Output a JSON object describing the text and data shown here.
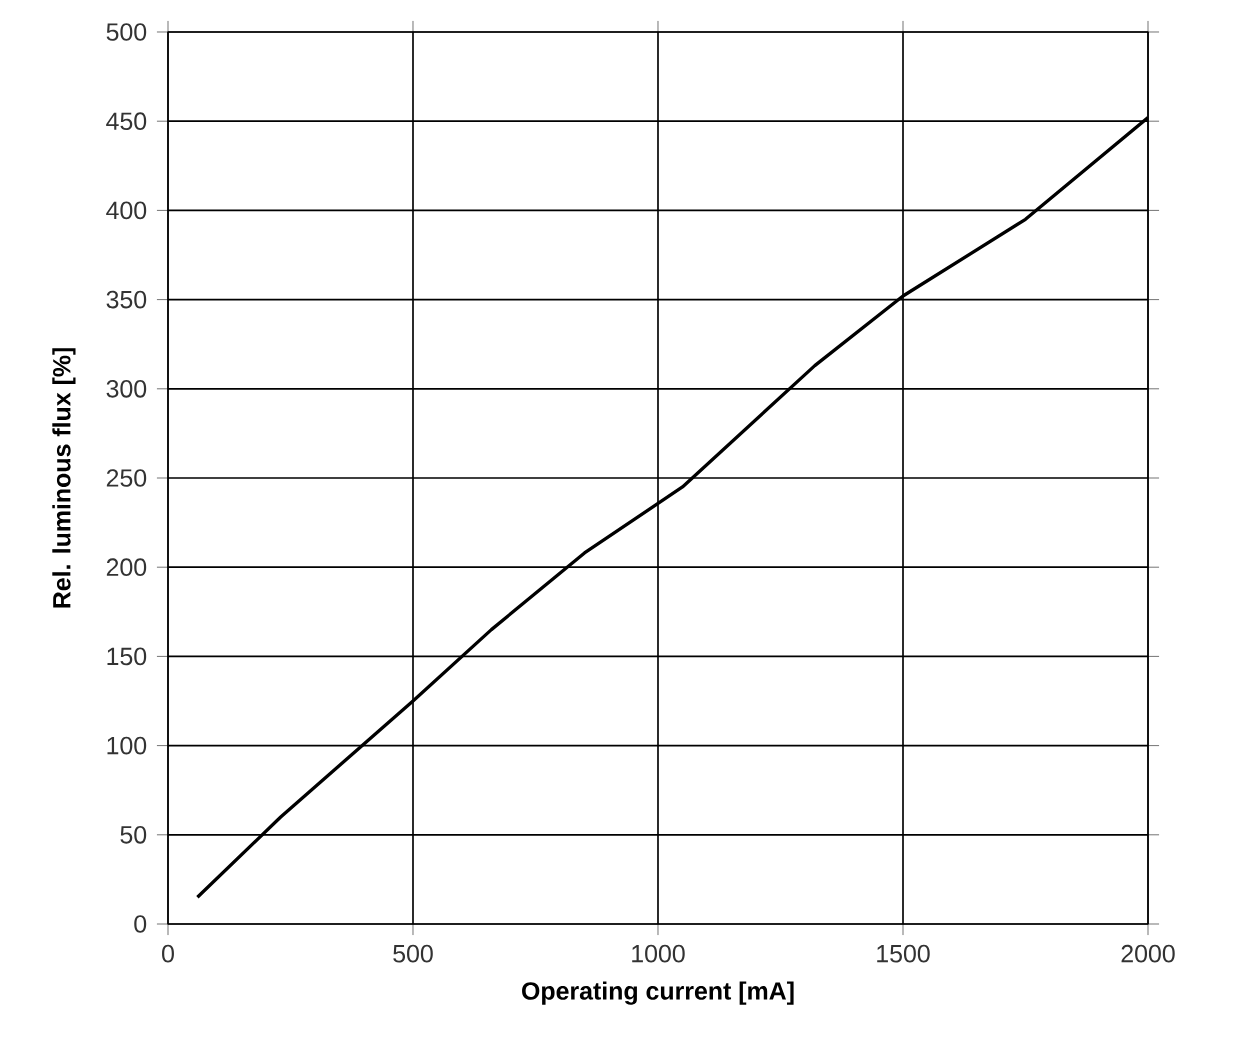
{
  "chart_data": {
    "type": "line",
    "xlabel": "Operating current [mA]",
    "ylabel": "Rel. luminous flux [%]",
    "x": [
      60,
      230,
      500,
      660,
      850,
      1050,
      1320,
      1500,
      1750,
      2000
    ],
    "series": [
      {
        "color": "#000000",
        "values": [
          15,
          60,
          125,
          165,
          208,
          245,
          313,
          352,
          395,
          452
        ]
      }
    ],
    "xlim": [
      0,
      2000
    ],
    "ylim": [
      0,
      500
    ],
    "xticks": [
      0,
      500,
      1000,
      1500,
      2000
    ],
    "yticks": [
      0,
      50,
      100,
      150,
      200,
      250,
      300,
      350,
      400,
      450,
      500
    ],
    "grid": true,
    "marker": "none",
    "line_style": "solid"
  }
}
